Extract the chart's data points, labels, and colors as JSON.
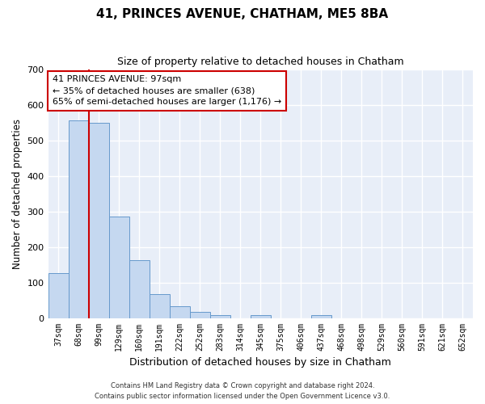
{
  "title1": "41, PRINCES AVENUE, CHATHAM, ME5 8BA",
  "title2": "Size of property relative to detached houses in Chatham",
  "xlabel": "Distribution of detached houses by size in Chatham",
  "ylabel": "Number of detached properties",
  "categories": [
    "37sqm",
    "68sqm",
    "99sqm",
    "129sqm",
    "160sqm",
    "191sqm",
    "222sqm",
    "252sqm",
    "283sqm",
    "314sqm",
    "345sqm",
    "375sqm",
    "406sqm",
    "437sqm",
    "468sqm",
    "498sqm",
    "529sqm",
    "560sqm",
    "591sqm",
    "621sqm",
    "652sqm"
  ],
  "bar_values": [
    127,
    555,
    550,
    285,
    163,
    68,
    32,
    18,
    8,
    0,
    8,
    0,
    0,
    8,
    0,
    0,
    0,
    0,
    0,
    0,
    0
  ],
  "bar_color": "#c5d8f0",
  "bar_edge_color": "#6699cc",
  "annotation_line1": "41 PRINCES AVENUE: 97sqm",
  "annotation_line2": "← 35% of detached houses are smaller (638)",
  "annotation_line3": "65% of semi-detached houses are larger (1,176) →",
  "annotation_box_color": "#ffffff",
  "annotation_box_edge": "#cc0000",
  "red_line_color": "#cc0000",
  "ylim": [
    0,
    700
  ],
  "yticks": [
    0,
    100,
    200,
    300,
    400,
    500,
    600,
    700
  ],
  "background_color": "#e8eef8",
  "grid_color": "#ffffff",
  "footer1": "Contains HM Land Registry data © Crown copyright and database right 2024.",
  "footer2": "Contains public sector information licensed under the Open Government Licence v3.0."
}
